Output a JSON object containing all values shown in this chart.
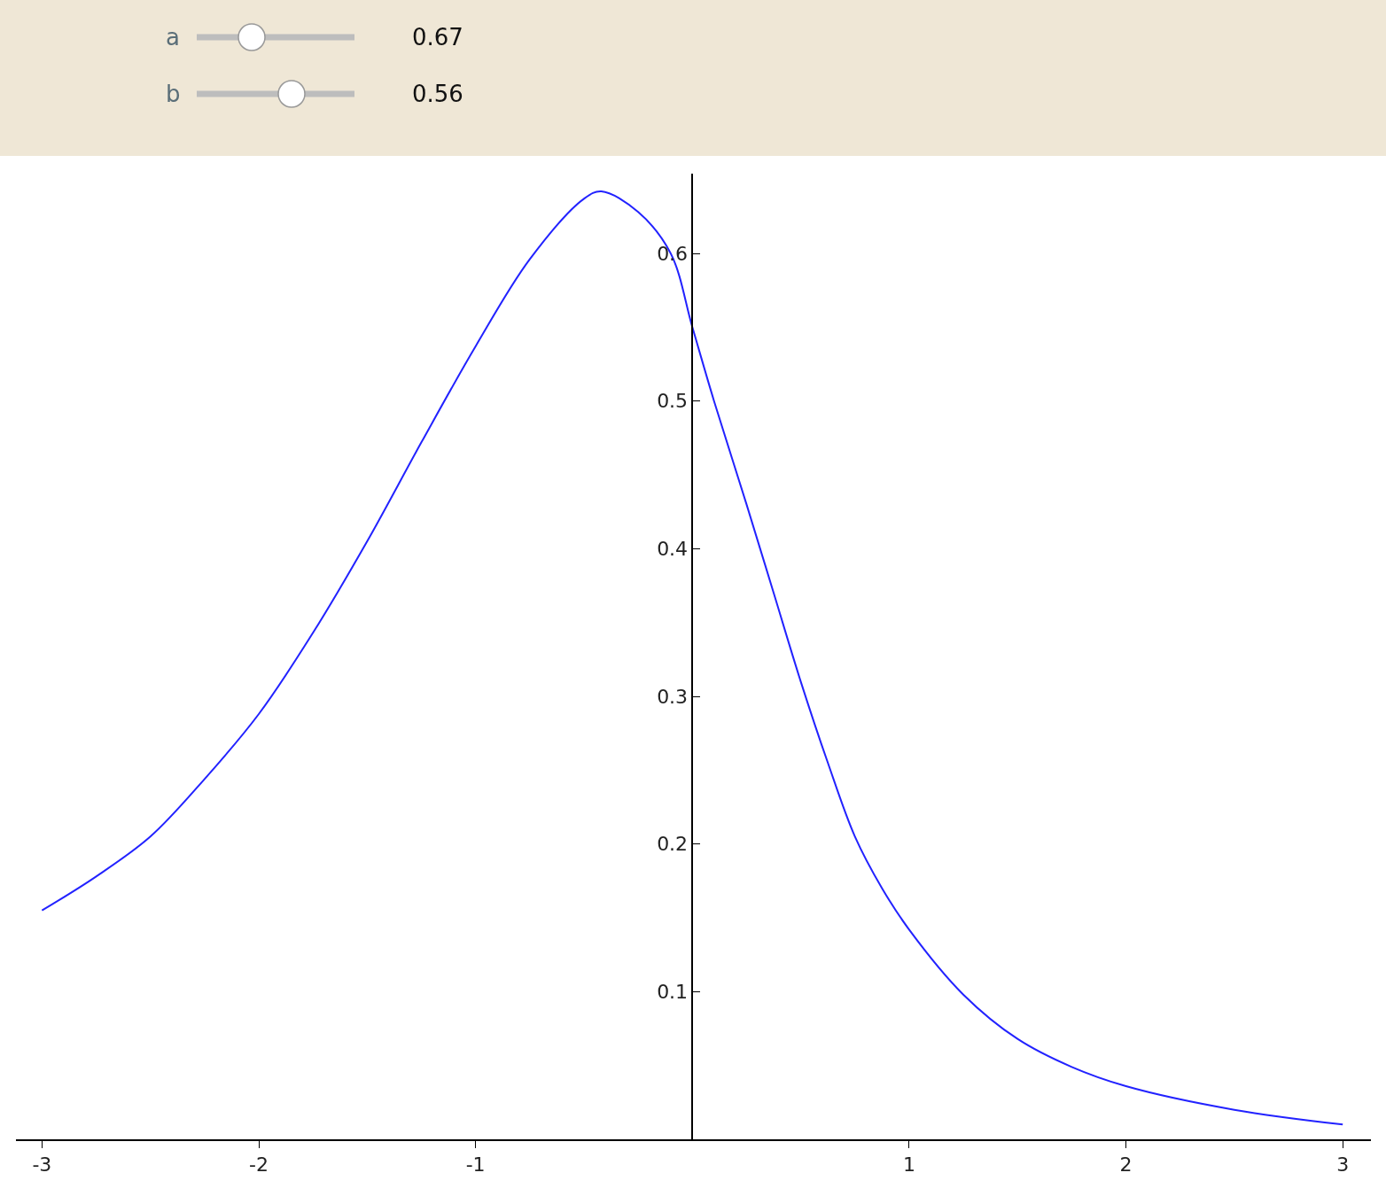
{
  "chart_data": {
    "type": "line",
    "x": [
      -3,
      -2.75,
      -2.5,
      -2.25,
      -2,
      -1.75,
      -1.5,
      -1.25,
      -1,
      -0.75,
      -0.5,
      -0.42,
      -0.25,
      -0.1,
      0,
      0.1,
      0.25,
      0.375,
      0.5,
      0.625,
      0.75,
      0.875,
      1,
      1.25,
      1.5,
      1.75,
      2,
      2.5,
      3
    ],
    "series": [
      {
        "color": "#2222ff",
        "values": [
          0.155,
          0.178,
          0.205,
          0.244,
          0.288,
          0.343,
          0.405,
          0.472,
          0.537,
          0.596,
          0.637,
          0.642,
          0.628,
          0.6,
          0.55,
          0.5,
          0.43,
          0.37,
          0.31,
          0.255,
          0.205,
          0.17,
          0.142,
          0.098,
          0.068,
          0.049,
          0.036,
          0.02,
          0.01
        ]
      }
    ],
    "xlim": [
      -3.12,
      3.13
    ],
    "ylim": [
      0,
      0.654
    ],
    "xticks": [
      -3,
      -2,
      -1,
      1,
      2,
      3
    ],
    "yticks": [
      0.1,
      0.2,
      0.3,
      0.4,
      0.5,
      0.6
    ],
    "marker": "none",
    "line_style": "solid",
    "annotations": [
      "a",
      "0.67",
      "b",
      "0.56"
    ]
  }
}
